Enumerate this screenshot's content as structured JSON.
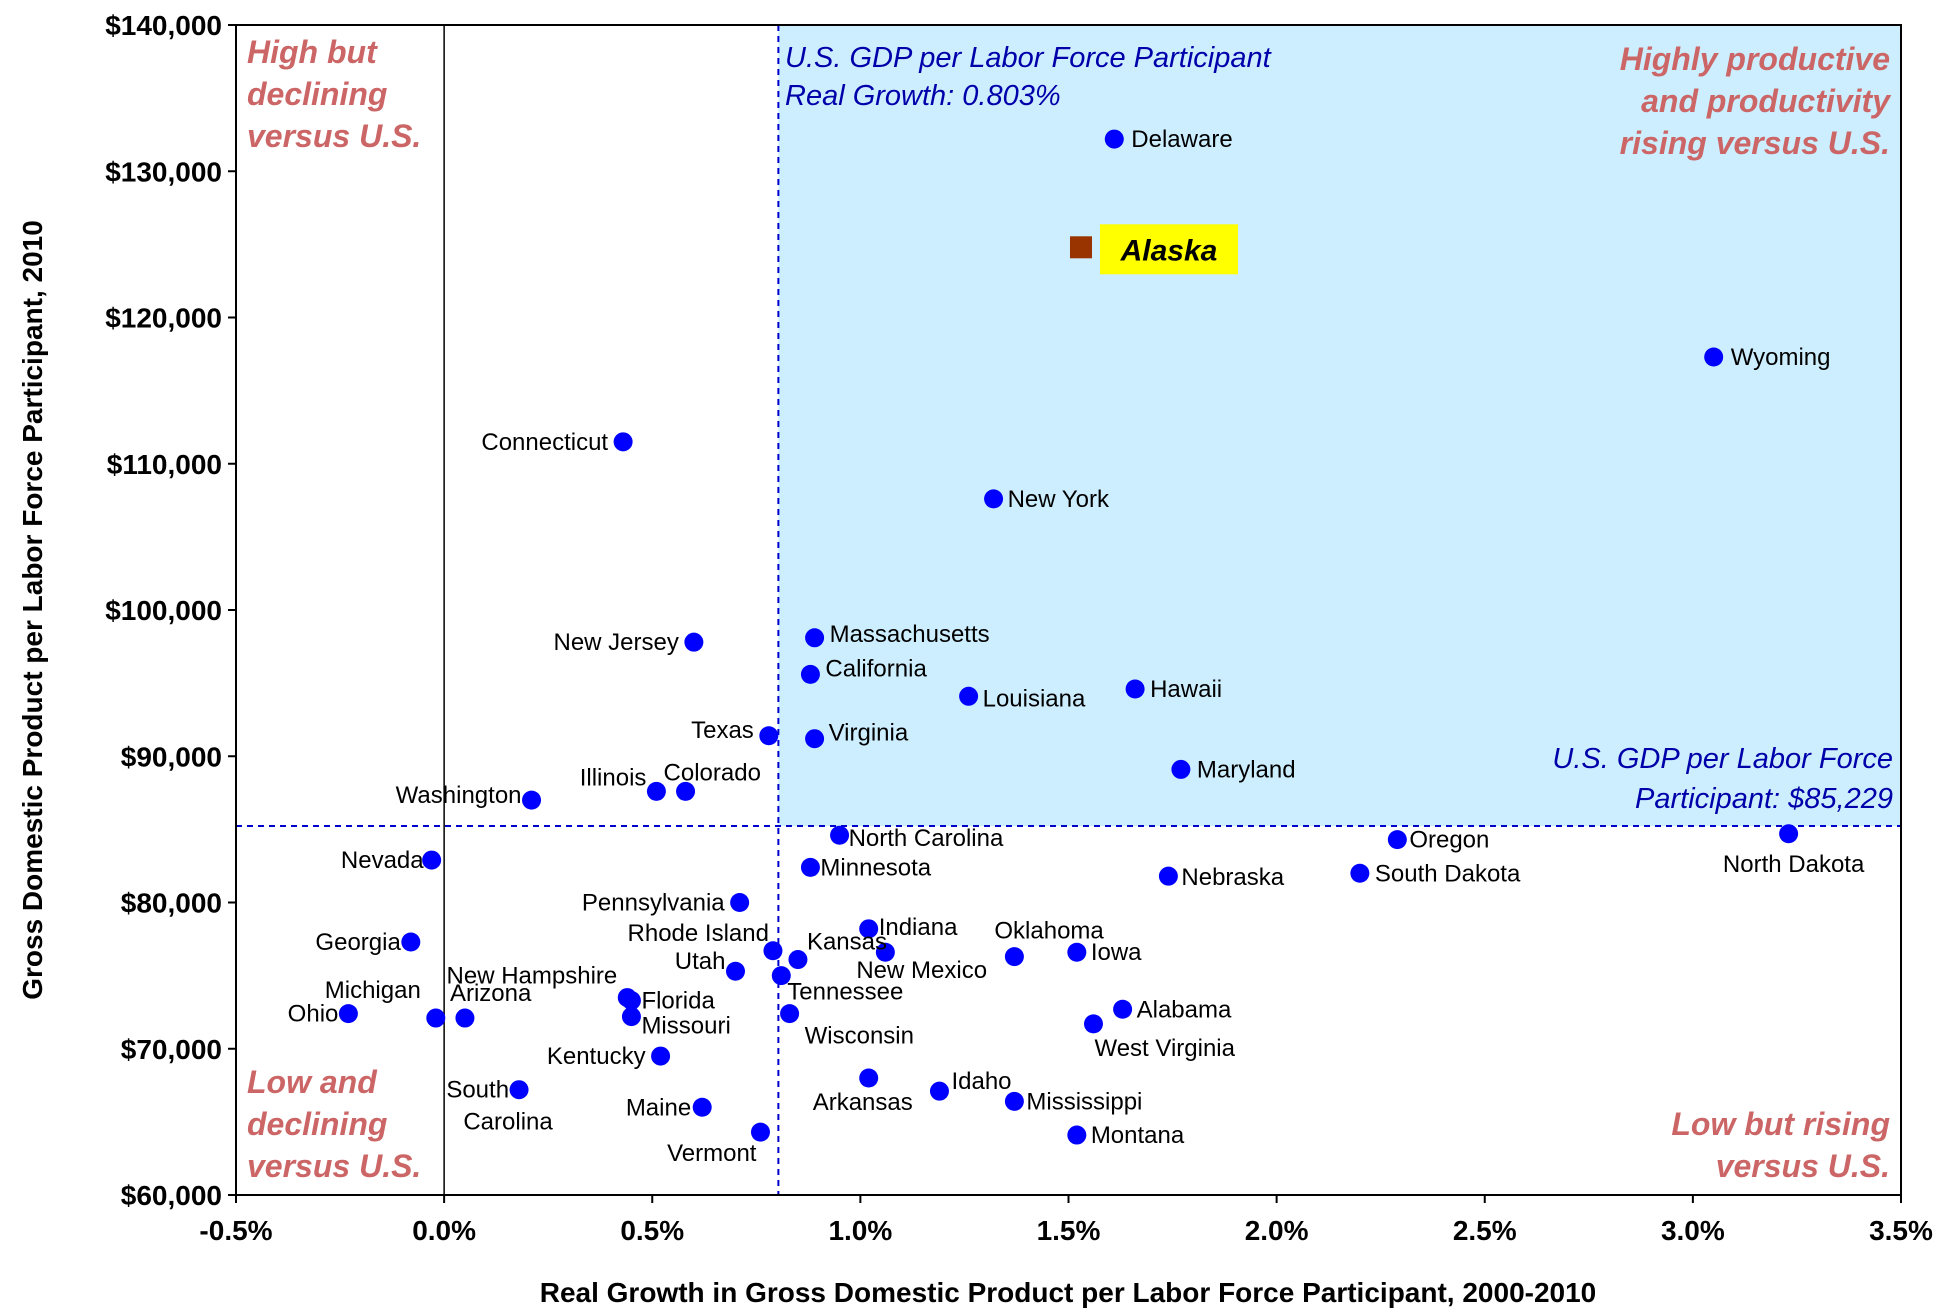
{
  "chart_data": {
    "type": "scatter",
    "title": "",
    "xlabel": "Real Growth in Gross Domestic Product per Labor Force Participant, 2000-2010",
    "ylabel": "Gross Domestic Product per Labor Force Participant,  2010",
    "xlim": [
      -0.5,
      3.5
    ],
    "ylim": [
      60000,
      140000
    ],
    "x_unit": "percent",
    "x_ticks": [
      {
        "v": -0.5,
        "label": "-0.5%"
      },
      {
        "v": 0.0,
        "label": "0.0%"
      },
      {
        "v": 0.5,
        "label": "0.5%"
      },
      {
        "v": 1.0,
        "label": "1.0%"
      },
      {
        "v": 1.5,
        "label": "1.5%"
      },
      {
        "v": 2.0,
        "label": "2.0%"
      },
      {
        "v": 2.5,
        "label": "2.5%"
      },
      {
        "v": 3.0,
        "label": "3.0%"
      },
      {
        "v": 3.5,
        "label": "3.5%"
      }
    ],
    "y_ticks": [
      {
        "v": 60000,
        "label": "$60,000"
      },
      {
        "v": 70000,
        "label": "$70,000"
      },
      {
        "v": 80000,
        "label": "$80,000"
      },
      {
        "v": 90000,
        "label": "$90,000"
      },
      {
        "v": 100000,
        "label": "$100,000"
      },
      {
        "v": 110000,
        "label": "$110,000"
      },
      {
        "v": 120000,
        "label": "$120,000"
      },
      {
        "v": 130000,
        "label": "$130,000"
      },
      {
        "v": 140000,
        "label": "$140,000"
      }
    ],
    "reference_lines": {
      "us_growth": {
        "x": 0.803,
        "label_lines": [
          "U.S. GDP per Labor Force Participant",
          "Real Growth: 0.803%"
        ]
      },
      "us_gdp": {
        "y": 85229,
        "label_lines": [
          "U.S. GDP per Labor Force",
          "Participant: $85,229"
        ]
      }
    },
    "quadrant_labels": {
      "top_left": [
        "High but",
        "declining",
        "versus U.S."
      ],
      "top_right": [
        "Highly productive",
        "and productivity",
        "rising versus U.S."
      ],
      "bottom_left": [
        "Low and",
        "declining",
        "versus U.S."
      ],
      "bottom_right": [
        "Low but rising",
        "versus U.S."
      ]
    },
    "highlight": {
      "name": "Alaska",
      "x": 1.53,
      "y": 124800
    },
    "points": [
      {
        "name": "Delaware",
        "x": 1.61,
        "y": 132200
      },
      {
        "name": "Wyoming",
        "x": 3.05,
        "y": 117300
      },
      {
        "name": "Connecticut",
        "x": 0.43,
        "y": 111500
      },
      {
        "name": "New York",
        "x": 1.32,
        "y": 107600
      },
      {
        "name": "New Jersey",
        "x": 0.6,
        "y": 97800
      },
      {
        "name": "Massachusetts",
        "x": 0.89,
        "y": 98100
      },
      {
        "name": "California",
        "x": 0.88,
        "y": 95600
      },
      {
        "name": "Louisiana",
        "x": 1.26,
        "y": 94100
      },
      {
        "name": "Hawaii",
        "x": 1.66,
        "y": 94600
      },
      {
        "name": "Texas",
        "x": 0.78,
        "y": 91400
      },
      {
        "name": "Virginia",
        "x": 0.89,
        "y": 91200
      },
      {
        "name": "Illinois",
        "x": 0.51,
        "y": 87600
      },
      {
        "name": "Colorado",
        "x": 0.58,
        "y": 87600
      },
      {
        "name": "Washington",
        "x": 0.21,
        "y": 87000
      },
      {
        "name": "Maryland",
        "x": 1.77,
        "y": 89100
      },
      {
        "name": "North Carolina",
        "x": 0.95,
        "y": 84600
      },
      {
        "name": "Oregon",
        "x": 2.29,
        "y": 84300
      },
      {
        "name": "North Dakota",
        "x": 3.23,
        "y": 84700
      },
      {
        "name": "Nevada",
        "x": -0.03,
        "y": 82900
      },
      {
        "name": "Minnesota",
        "x": 0.88,
        "y": 82400
      },
      {
        "name": "Nebraska",
        "x": 1.74,
        "y": 81800
      },
      {
        "name": "South Dakota",
        "x": 2.2,
        "y": 82000
      },
      {
        "name": "Pennsylvania",
        "x": 0.71,
        "y": 80000
      },
      {
        "name": "Indiana",
        "x": 1.02,
        "y": 78200
      },
      {
        "name": "Georgia",
        "x": -0.08,
        "y": 77300
      },
      {
        "name": "Oklahoma",
        "x": 1.37,
        "y": 76300
      },
      {
        "name": "Iowa",
        "x": 1.52,
        "y": 76600
      },
      {
        "name": "Rhode Island",
        "x": 0.79,
        "y": 76700
      },
      {
        "name": "Kansas",
        "x": 0.85,
        "y": 76100
      },
      {
        "name": "New Mexico",
        "x": 1.06,
        "y": 76600
      },
      {
        "name": "Utah",
        "x": 0.7,
        "y": 75300
      },
      {
        "name": "Tennessee",
        "x": 0.81,
        "y": 75000
      },
      {
        "name": "New Hampshire",
        "x": 0.44,
        "y": 73500
      },
      {
        "name": "Florida",
        "x": 0.45,
        "y": 73300
      },
      {
        "name": "Missouri",
        "x": 0.45,
        "y": 72200
      },
      {
        "name": "Michigan",
        "x": -0.02,
        "y": 72100
      },
      {
        "name": "Arizona",
        "x": 0.05,
        "y": 72100
      },
      {
        "name": "Ohio",
        "x": -0.23,
        "y": 72400
      },
      {
        "name": "Alabama",
        "x": 1.63,
        "y": 72700
      },
      {
        "name": "West Virginia",
        "x": 1.56,
        "y": 71700
      },
      {
        "name": "Wisconsin",
        "x": 0.83,
        "y": 72400
      },
      {
        "name": "Kentucky",
        "x": 0.52,
        "y": 69500
      },
      {
        "name": "Arkansas",
        "x": 1.02,
        "y": 68000
      },
      {
        "name": "Idaho",
        "x": 1.19,
        "y": 67100
      },
      {
        "name": "Mississippi",
        "x": 1.37,
        "y": 66400
      },
      {
        "name": "South Carolina",
        "x": 0.18,
        "y": 67200
      },
      {
        "name": "Maine",
        "x": 0.62,
        "y": 66000
      },
      {
        "name": "Vermont",
        "x": 0.76,
        "y": 64300
      },
      {
        "name": "Montana",
        "x": 1.52,
        "y": 64100
      }
    ],
    "colors": {
      "point": "#0000ff",
      "highlight_marker": "#993300",
      "highlight_box": "#ffff00",
      "quadrant_fill": "#cceeff",
      "quadrant_text": "#cc6666",
      "reference_line": "#0000cc",
      "reference_text": "#0000aa"
    },
    "grid": false,
    "legend": "none"
  }
}
